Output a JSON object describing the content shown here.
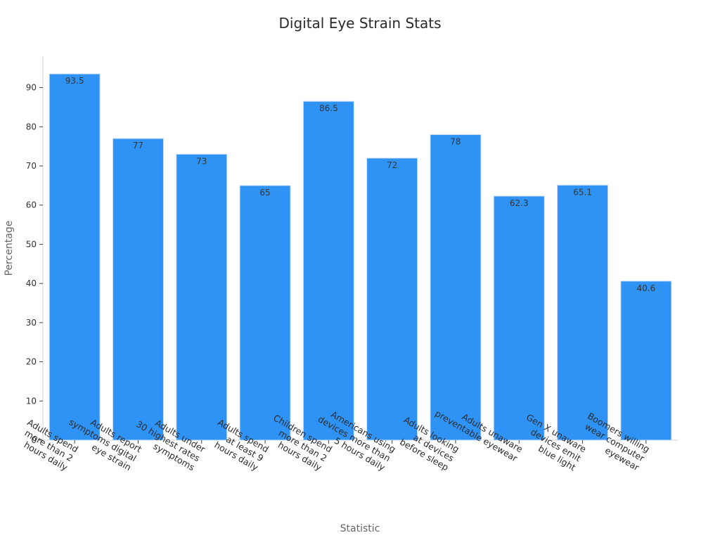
{
  "chart_data": {
    "type": "bar",
    "title": "Digital Eye Strain Stats",
    "xlabel": "Statistic",
    "ylabel": "Percentage",
    "ylim": [
      0,
      98
    ],
    "yticks": [
      0,
      10,
      20,
      30,
      40,
      50,
      60,
      70,
      80,
      90
    ],
    "bar_color": "#2f93f6",
    "grid": false,
    "categories": [
      [
        "Adults spend",
        "more than 2",
        "hours daily"
      ],
      [
        "Adults report",
        "symptoms digital",
        "eye strain"
      ],
      [
        "Adults under",
        "30 highest rates",
        "symptoms"
      ],
      [
        "Adults spend",
        "at least 9",
        "hours daily"
      ],
      [
        "Children spend",
        "more than 2",
        "hours daily"
      ],
      [
        "Americans using",
        "devices more than",
        "5 hours daily"
      ],
      [
        "Adults looking",
        "at devices",
        "before sleep"
      ],
      [
        "Adults unaware",
        "preventable eyewear"
      ],
      [
        "Gen X unaware",
        "devices emit",
        "blue light"
      ],
      [
        "Boomers willing",
        "wear computer",
        "eyewear"
      ]
    ],
    "values": [
      93.5,
      77,
      73,
      65,
      86.5,
      72,
      78,
      62.3,
      65.1,
      40.6
    ],
    "data_labels": [
      "93.5",
      "77",
      "73",
      "65",
      "86.5",
      "72",
      "78",
      "62.3",
      "65.1",
      "40.6"
    ]
  }
}
